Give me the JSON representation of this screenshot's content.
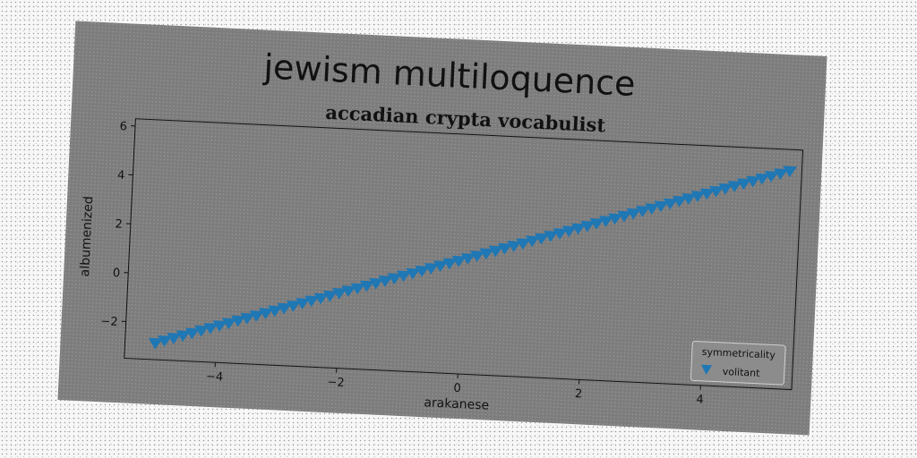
{
  "figure_title": "jewism multiloquence",
  "chart_data": {
    "type": "scatter",
    "title": "accadian crypta vocabulist",
    "xlabel": "arakanese",
    "ylabel": "albumenized",
    "xlim": [
      -5.5,
      5.5
    ],
    "ylim": [
      -3.5,
      6.3
    ],
    "xticks": [
      -4,
      -2,
      0,
      2,
      4
    ],
    "xtick_labels": [
      "−4",
      "−2",
      "0",
      "2",
      "4"
    ],
    "yticks": [
      -2,
      0,
      2,
      4,
      6
    ],
    "ytick_labels": [
      "−2",
      "0",
      "2",
      "4",
      "6"
    ],
    "grid": false,
    "legend": {
      "title": "symmetricality",
      "location": "lower-right"
    },
    "series": [
      {
        "name": "volitant",
        "marker": "triangle-down",
        "color": "#1f77b4",
        "x_start": -5.0,
        "x_end": 5.3,
        "n_points": 70,
        "slope": 0.8,
        "intercept": 1.2
      }
    ]
  }
}
